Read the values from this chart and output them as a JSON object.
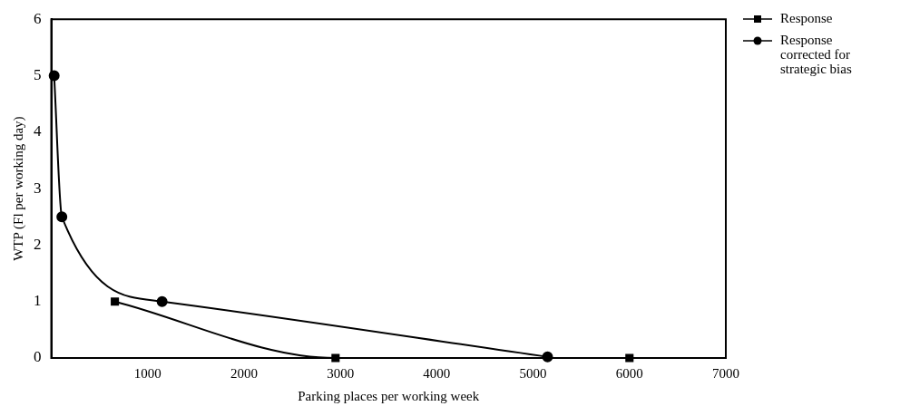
{
  "chart_data": {
    "type": "line",
    "xlabel": "Parking places per working week",
    "ylabel": "WTP (Fl per working day)",
    "xlim": [
      0,
      7000
    ],
    "ylim": [
      0,
      6
    ],
    "xticks": [
      1000,
      2000,
      3000,
      4000,
      5000,
      6000,
      7000
    ],
    "yticks": [
      0,
      1,
      2,
      3,
      4,
      5,
      6
    ],
    "grid": false,
    "legend": "top right",
    "series": [
      {
        "name": "Response",
        "color": "#000000",
        "marker": "square",
        "x": [
          660,
          2950,
          6000
        ],
        "values": [
          1,
          0,
          0
        ]
      },
      {
        "name": "Response corrected for strategic bias",
        "color": "#000000",
        "marker": "circle",
        "x": [
          30,
          110,
          1150,
          5150
        ],
        "values": [
          5,
          2.5,
          1,
          0.02
        ]
      }
    ]
  }
}
